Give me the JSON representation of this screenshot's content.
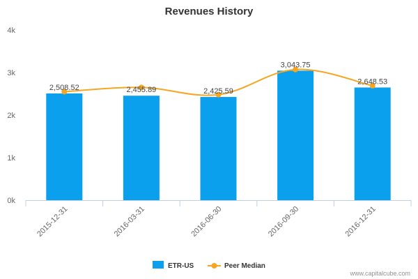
{
  "colors": {
    "bar": "#0aa0ee",
    "line": "#f5a623",
    "axis": "#c0d0e0",
    "title": "#333333",
    "tick_text": "#666666"
  },
  "chart_data": {
    "type": "bar",
    "title": "Revenues History",
    "xlabel": "",
    "ylabel": "",
    "categories": [
      "2015-12-31",
      "2016-03-31",
      "2016-06-30",
      "2016-09-30",
      "2016-12-31"
    ],
    "series": [
      {
        "name": "ETR-US",
        "type": "bar",
        "values": [
          2508.52,
          2455.89,
          2425.59,
          3043.75,
          2648.53
        ],
        "data_labels": [
          "2,508.52",
          "2,455.89",
          "2,425.59",
          "3,043.75",
          "2,648.53"
        ]
      },
      {
        "name": "Peer Median",
        "type": "line",
        "smooth": true,
        "values": [
          2550,
          2650,
          2480,
          3070,
          2690
        ]
      }
    ],
    "ylim": [
      0,
      4000
    ],
    "yticks": [
      0,
      1000,
      2000,
      3000,
      4000
    ],
    "ytick_labels": [
      "0k",
      "1k",
      "2k",
      "3k",
      "4k"
    ],
    "grid": false,
    "legend_position": "bottom-center",
    "credit": "www.capitalcube.com"
  }
}
